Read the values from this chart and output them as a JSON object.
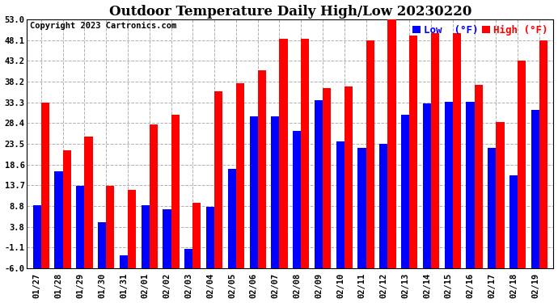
{
  "title": "Outdoor Temperature Daily High/Low 20230220",
  "copyright": "Copyright 2023 Cartronics.com",
  "dates": [
    "01/27",
    "01/28",
    "01/29",
    "01/30",
    "01/31",
    "02/01",
    "02/02",
    "02/03",
    "02/04",
    "02/05",
    "02/06",
    "02/07",
    "02/08",
    "02/09",
    "02/10",
    "02/11",
    "02/12",
    "02/13",
    "02/14",
    "02/15",
    "02/16",
    "02/17",
    "02/18",
    "02/19"
  ],
  "highs": [
    33.3,
    22.0,
    25.2,
    13.5,
    12.5,
    28.2,
    30.5,
    9.5,
    36.0,
    37.8,
    41.0,
    48.5,
    48.5,
    36.8,
    37.2,
    48.1,
    53.0,
    49.2,
    49.8,
    49.8,
    37.5,
    28.6,
    43.2,
    48.1
  ],
  "lows": [
    9.0,
    17.0,
    13.5,
    5.0,
    -3.0,
    9.0,
    8.0,
    -1.5,
    8.5,
    17.5,
    30.0,
    30.0,
    26.5,
    33.8,
    24.0,
    22.5,
    23.5,
    30.5,
    33.0,
    33.5,
    33.5,
    22.5,
    16.0,
    31.5
  ],
  "bar_color_high": "#ff0000",
  "bar_color_low": "#0000ff",
  "bg_color": "#ffffff",
  "grid_color": "#b0b0b0",
  "ylim_min": -6.0,
  "ylim_max": 53.0,
  "yticks": [
    -6.0,
    -1.1,
    3.8,
    8.8,
    13.7,
    18.6,
    23.5,
    28.4,
    33.3,
    38.2,
    43.2,
    48.1,
    53.0
  ],
  "title_fontsize": 12,
  "tick_fontsize": 7.5,
  "legend_fontsize": 9,
  "copyright_fontsize": 7.5
}
